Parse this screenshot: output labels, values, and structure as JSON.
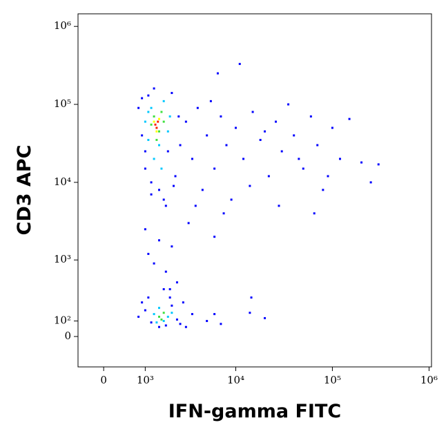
{
  "chart_data": {
    "type": "scatter",
    "x_label": "IFN-gamma FITC",
    "y_label": "CD3 APC",
    "xscale": "biexponential",
    "yscale": "biexponential",
    "xlim": [
      -560,
      1060000
    ],
    "ylim": [
      -216,
      1450000
    ],
    "xticks": [
      0,
      {
        "value": 1000,
        "label": "10³"
      },
      {
        "value": 10000,
        "label": "10⁴"
      },
      {
        "value": 100000,
        "label": "10⁵"
      },
      {
        "value": 1000000,
        "label": "10⁶"
      }
    ],
    "yticks": [
      0,
      {
        "value": 100,
        "label": "10²"
      },
      {
        "value": 1000,
        "label": "10³"
      },
      {
        "value": 10000,
        "label": "10⁴"
      },
      {
        "value": 100000,
        "label": "10⁵"
      },
      {
        "value": 1000000,
        "label": "10⁶"
      }
    ],
    "series": [
      {
        "color": "#0000ff",
        "x": [
          800,
          900,
          1000,
          1100,
          1200,
          1300,
          1500,
          1700,
          1900,
          2100,
          2300,
          2500,
          900,
          1000,
          1200,
          1800,
          2200,
          2600,
          3000,
          3500,
          4000,
          5000,
          6000,
          7000,
          8000,
          10000,
          12000,
          15000,
          18000,
          22000,
          26000,
          30000,
          35000,
          40000,
          50000,
          60000,
          70000,
          80000,
          100000,
          120000,
          150000,
          200000,
          250000,
          300000,
          4500,
          5500,
          6500,
          9000,
          11000,
          14000,
          20000,
          28000,
          45000,
          65000,
          90000,
          3200,
          3800,
          6000,
          7500,
          1000,
          1100,
          1300,
          1500,
          1800,
          2100,
          2400,
          1700,
          2000,
          900,
          1000,
          1200,
          1500,
          1800,
          2100,
          2400,
          2600,
          1100,
          2000,
          2800,
          3500,
          800,
          5000,
          6000,
          7000,
          14000,
          14500,
          20000,
          3000
        ],
        "y": [
          90000,
          40000,
          15000,
          130000,
          10000,
          160000,
          8000,
          6000,
          25000,
          140000,
          12000,
          70000,
          120000,
          25000,
          7000,
          5000,
          9000,
          30000,
          60000,
          20000,
          90000,
          40000,
          15000,
          70000,
          30000,
          50000,
          20000,
          80000,
          35000,
          12000,
          60000,
          25000,
          100000,
          40000,
          15000,
          70000,
          30000,
          8000,
          50000,
          20000,
          65000,
          18000,
          10000,
          17000,
          8000,
          110000,
          250000,
          6000,
          330000,
          9000,
          45000,
          5000,
          20000,
          4000,
          12000,
          3000,
          5000,
          2000,
          4000,
          2500,
          1200,
          900,
          1800,
          700,
          1500,
          500,
          400,
          300,
          250,
          180,
          90,
          60,
          70,
          220,
          110,
          80,
          300,
          400,
          250,
          150,
          130,
          100,
          150,
          80,
          160,
          300,
          120,
          60
        ]
      },
      {
        "color": "#00c8ff",
        "x": [
          1000,
          1100,
          1200,
          1500,
          1700,
          1900,
          1300,
          1600,
          1100,
          2000,
          1300,
          1500,
          1700,
          1900,
          1400,
          2100
        ],
        "y": [
          60000,
          35000,
          90000,
          30000,
          110000,
          45000,
          20000,
          15000,
          80000,
          70000,
          150,
          200,
          100,
          130,
          90,
          160
        ]
      },
      {
        "color": "#40e040",
        "x": [
          1200,
          1300,
          1500,
          1600,
          1400,
          1700,
          1500,
          1700,
          1600
        ],
        "y": [
          55000,
          70000,
          45000,
          80000,
          35000,
          60000,
          130,
          160,
          110
        ]
      },
      {
        "color": "#ffff00",
        "x": [
          1300,
          1400,
          1500
        ],
        "y": [
          60000,
          45000,
          65000
        ]
      },
      {
        "color": "#ff2000",
        "x": [
          1400,
          1350,
          1450
        ],
        "y": [
          50000,
          55000,
          60000
        ]
      }
    ]
  }
}
